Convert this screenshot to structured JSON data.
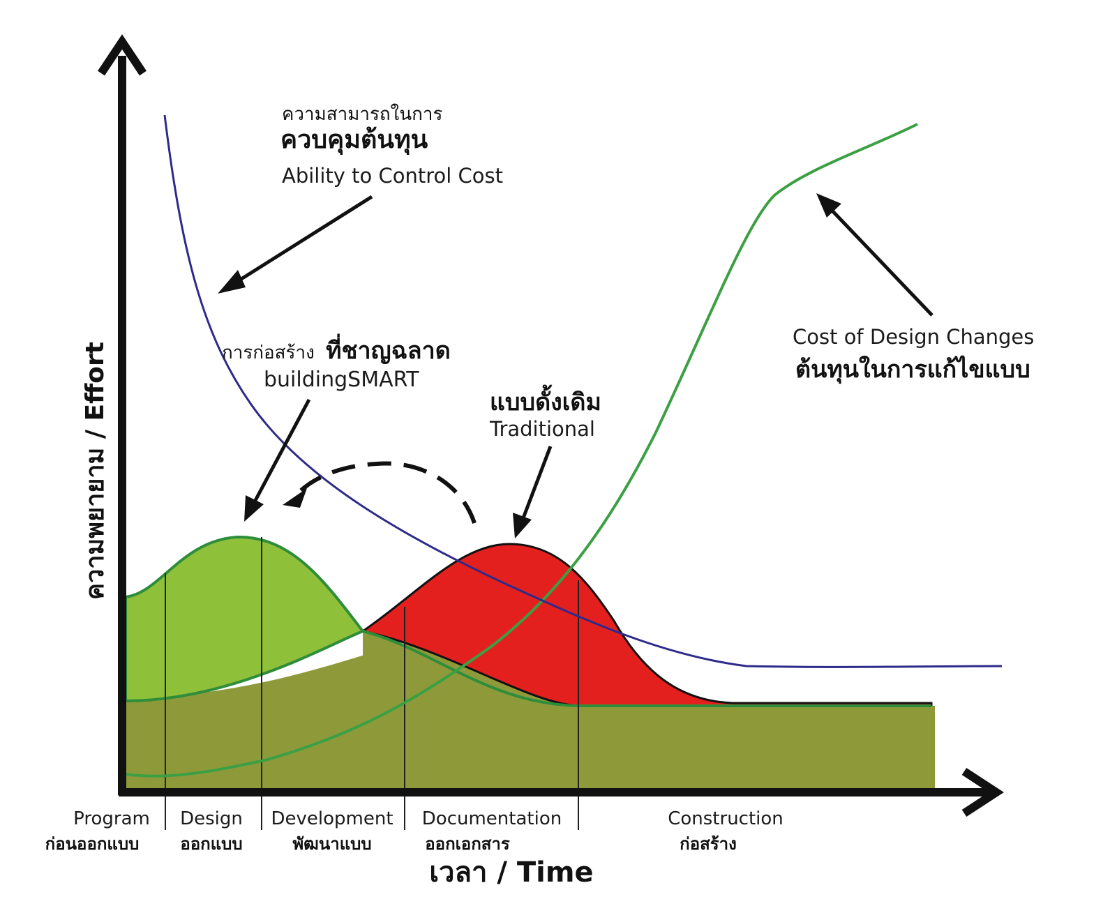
{
  "axes": {
    "y_label": "ความพยายาม / Effort",
    "x_label": "เวลา / Time"
  },
  "annotations": {
    "control_cost": {
      "line1": "ความสามารถในการ",
      "line2": "ควบคุมต้นทุน",
      "english": "Ability to Control Cost"
    },
    "building_smart": {
      "thai_prefix": "การก่อสร้าง",
      "thai_bold": "ที่ชาญฉลาด",
      "english": "buildingSMART"
    },
    "traditional": {
      "thai": "แบบดั้งเดิม",
      "english": "Traditional"
    },
    "design_changes": {
      "english": "Cost of Design Changes",
      "thai": "ต้นทุนในการแก้ไขแบบ"
    }
  },
  "phases": [
    {
      "en": "Program",
      "th": "ก่อนออกแบบ"
    },
    {
      "en": "Design",
      "th": "ออกแบบ"
    },
    {
      "en": "Development",
      "th": "พัฒนาแบบ"
    },
    {
      "en": "Documentation",
      "th": "ออกเอกสาร"
    },
    {
      "en": "Construction",
      "th": "ก่อสร้าง"
    }
  ],
  "colors": {
    "axis": "#111111",
    "blue_curve": "#2e2a8a",
    "green_curve": "#3aa043",
    "smart_fill": "#8fc03a",
    "base_fill": "#8e9a3a",
    "traditional_fill": "#e4201f"
  }
}
